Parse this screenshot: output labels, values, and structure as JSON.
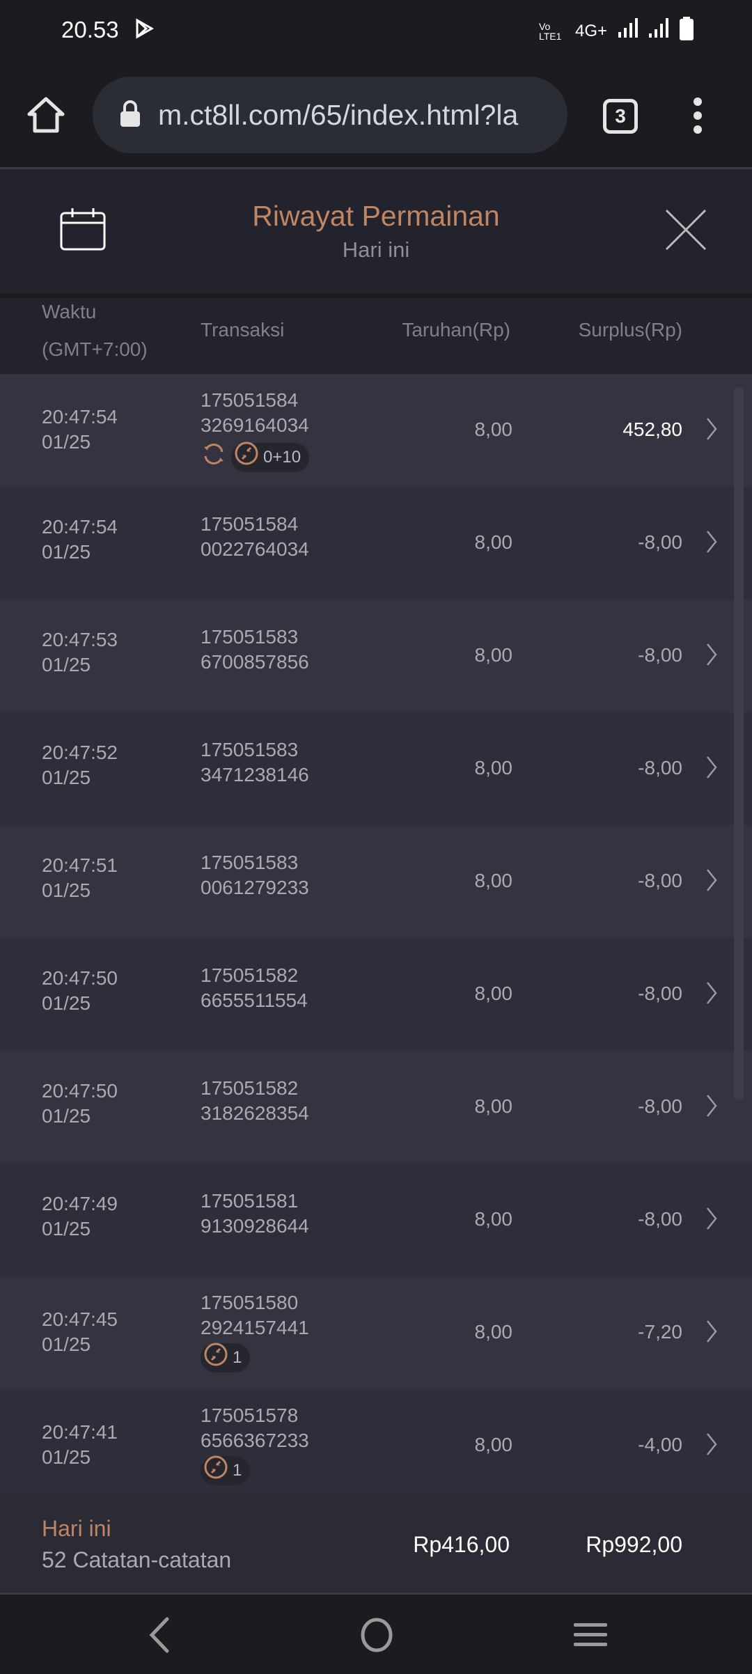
{
  "status_bar": {
    "time": "20.53",
    "network": "4G+",
    "volte": "Vo LTE1"
  },
  "browser": {
    "url": "m.ct8ll.com/65/index.html?la",
    "tab_count": "3"
  },
  "header": {
    "title": "Riwayat Permainan",
    "subtitle": "Hari ini"
  },
  "columns": {
    "time_line1": "Waktu",
    "time_line2": "(GMT+7:00)",
    "transaction": "Transaksi",
    "bet": "Taruhan(Rp)",
    "surplus": "Surplus(Rp)"
  },
  "colors": {
    "accent": "#c08562",
    "background": "#22232d"
  },
  "rows": [
    {
      "time": "20:47:54",
      "date": "01/25",
      "tx1": "175051584",
      "tx2": "3269164034",
      "bet": "8,00",
      "surplus": "452,80",
      "win": true,
      "respin": true,
      "badge": "0+10"
    },
    {
      "time": "20:47:54",
      "date": "01/25",
      "tx1": "175051584",
      "tx2": "0022764034",
      "bet": "8,00",
      "surplus": "-8,00"
    },
    {
      "time": "20:47:53",
      "date": "01/25",
      "tx1": "175051583",
      "tx2": "6700857856",
      "bet": "8,00",
      "surplus": "-8,00"
    },
    {
      "time": "20:47:52",
      "date": "01/25",
      "tx1": "175051583",
      "tx2": "3471238146",
      "bet": "8,00",
      "surplus": "-8,00"
    },
    {
      "time": "20:47:51",
      "date": "01/25",
      "tx1": "175051583",
      "tx2": "0061279233",
      "bet": "8,00",
      "surplus": "-8,00"
    },
    {
      "time": "20:47:50",
      "date": "01/25",
      "tx1": "175051582",
      "tx2": "6655511554",
      "bet": "8,00",
      "surplus": "-8,00"
    },
    {
      "time": "20:47:50",
      "date": "01/25",
      "tx1": "175051582",
      "tx2": "3182628354",
      "bet": "8,00",
      "surplus": "-8,00"
    },
    {
      "time": "20:47:49",
      "date": "01/25",
      "tx1": "175051581",
      "tx2": "9130928644",
      "bet": "8,00",
      "surplus": "-8,00"
    },
    {
      "time": "20:47:45",
      "date": "01/25",
      "tx1": "175051580",
      "tx2": "2924157441",
      "bet": "8,00",
      "surplus": "-7,20",
      "badge": "1"
    },
    {
      "time": "20:47:41",
      "date": "01/25",
      "tx1": "175051578",
      "tx2": "6566367233",
      "bet": "8,00",
      "surplus": "-4,00",
      "badge": "1"
    }
  ],
  "footer": {
    "period": "Hari ini",
    "count": "52 Catatan-catatan",
    "total_bet": "Rp416,00",
    "total_surplus": "Rp992,00"
  }
}
